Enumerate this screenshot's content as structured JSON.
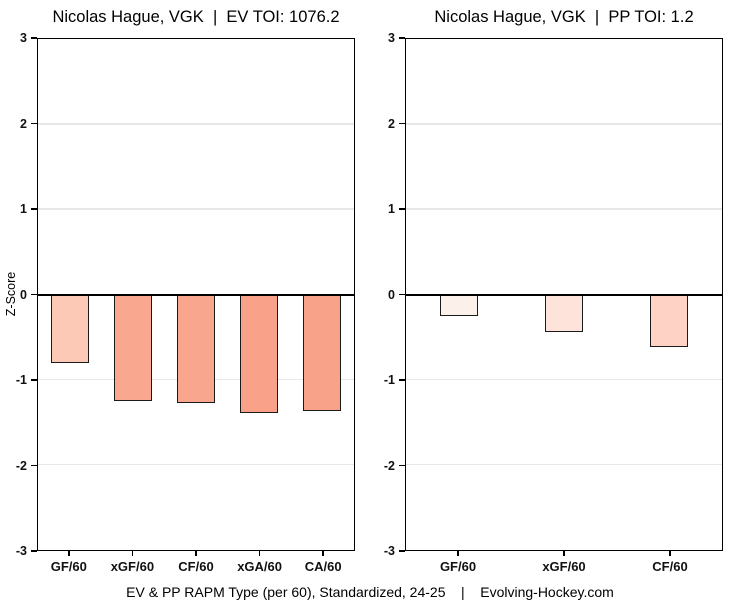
{
  "figure": {
    "caption": "EV & PP RAPM Type (per 60), Standardized, 24-25    |    Evolving-Hockey.com"
  },
  "colors": {
    "panel_border": "#000000",
    "zero_line": "#000000",
    "gridline": "#e8e8e8",
    "bar_border": "#1a1a1a"
  },
  "chart_data": [
    {
      "type": "bar",
      "title": "Nicolas Hague, VGK  |  EV TOI: 1076.2",
      "player": "Nicolas Hague",
      "team": "VGK",
      "strength": "EV",
      "toi": 1076.2,
      "categories": [
        "GF/60",
        "xGF/60",
        "CF/60",
        "xGA/60",
        "CA/60"
      ],
      "values": [
        -0.8,
        -1.25,
        -1.27,
        -1.39,
        -1.37
      ],
      "bar_colors": [
        "#fcc9b6",
        "#f9a78f",
        "#f9a68e",
        "#f9a189",
        "#f9a28a"
      ],
      "xlabel": "",
      "ylabel": "Z-Score",
      "ylim": [
        -3,
        3
      ],
      "yticks": [
        3,
        2,
        1,
        0,
        -1,
        -2,
        -3
      ],
      "grid": "major-horizontal",
      "legend": "none"
    },
    {
      "type": "bar",
      "title": "Nicolas Hague, VGK  |  PP TOI: 1.2",
      "player": "Nicolas Hague",
      "team": "VGK",
      "strength": "PP",
      "toi": 1.2,
      "categories": [
        "GF/60",
        "xGF/60",
        "CF/60"
      ],
      "values": [
        -0.25,
        -0.44,
        -0.62
      ],
      "bar_colors": [
        "#fbf0ea",
        "#fde3da",
        "#fed3c5"
      ],
      "xlabel": "",
      "ylabel": "",
      "ylim": [
        -3,
        3
      ],
      "yticks": [
        3,
        2,
        1,
        0,
        -1,
        -2,
        -3
      ],
      "grid": "major-horizontal",
      "legend": "none"
    }
  ]
}
